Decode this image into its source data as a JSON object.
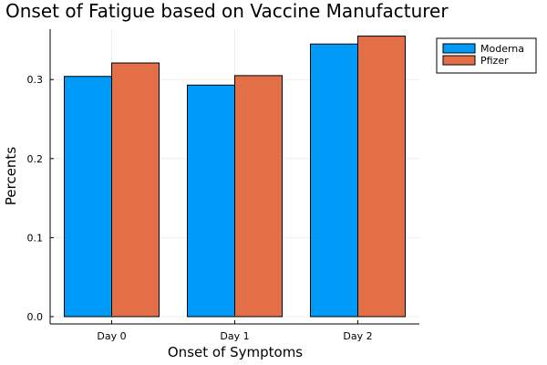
{
  "chart_data": {
    "type": "bar",
    "title": "Onset of Fatigue based on Vaccine Manufacturer",
    "xlabel": "Onset of Symptoms",
    "ylabel": "Percents",
    "categories": [
      "Day 0",
      "Day 1",
      "Day 2"
    ],
    "series": [
      {
        "name": "Moderna",
        "color": "#009af9",
        "values": [
          0.304,
          0.293,
          0.345
        ]
      },
      {
        "name": "Pfizer",
        "color": "#e26f46",
        "values": [
          0.321,
          0.305,
          0.355
        ]
      }
    ],
    "ylim": [
      0,
      0.36
    ],
    "yticks": [
      "0.0",
      "0.1",
      "0.2",
      "0.3"
    ],
    "grid": true,
    "legend": "top-right"
  }
}
